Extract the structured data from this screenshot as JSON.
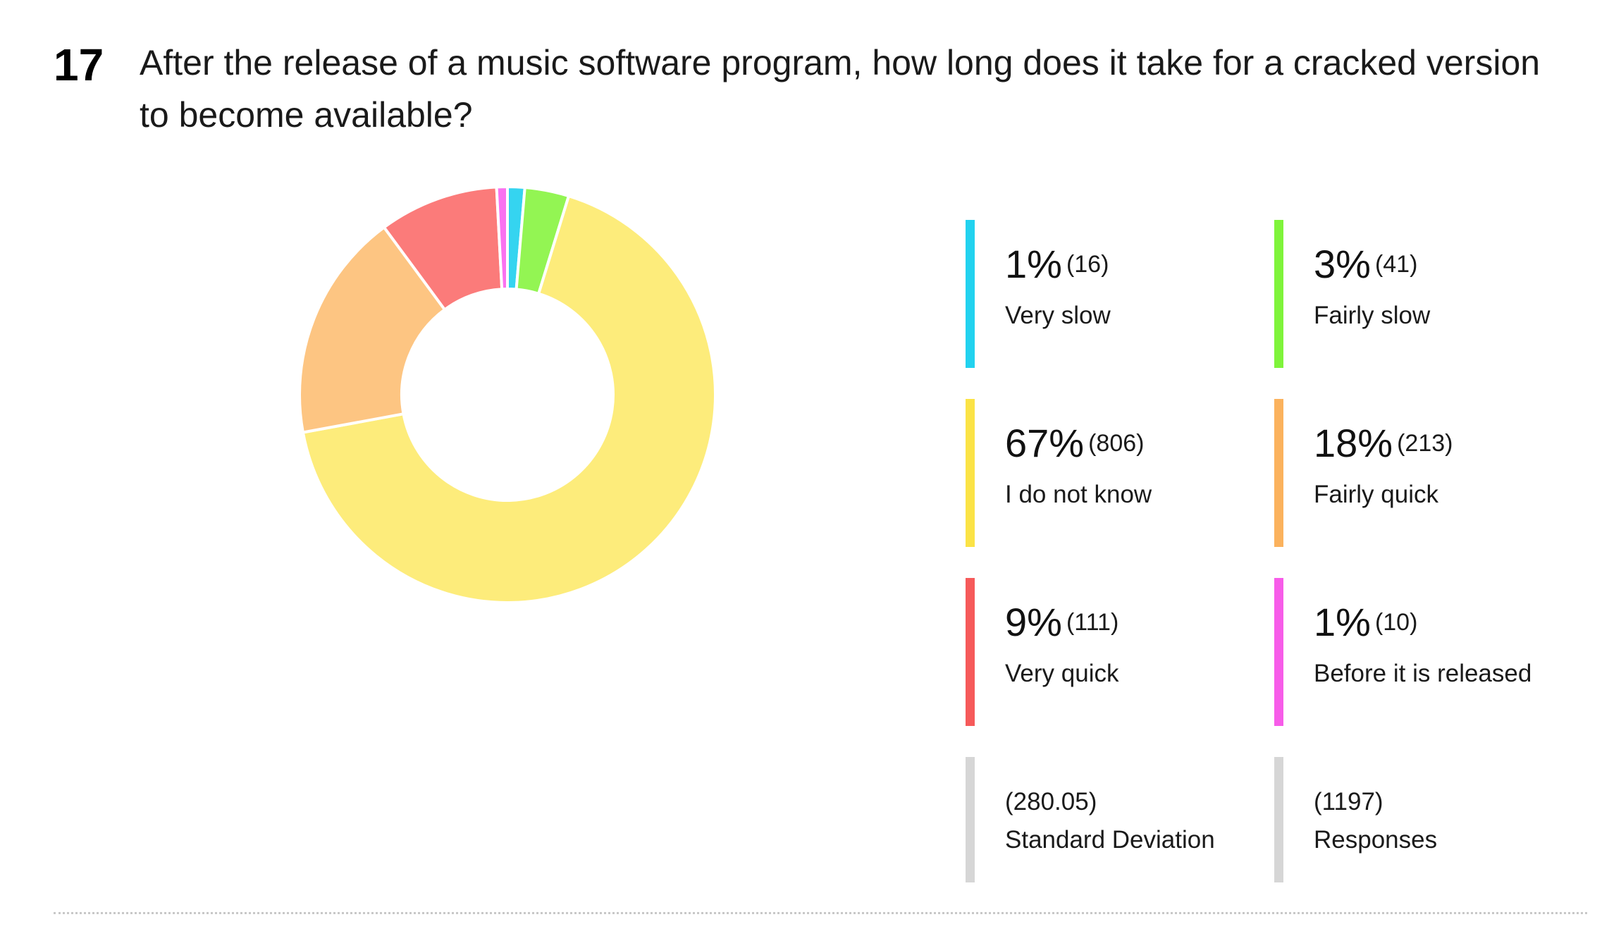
{
  "question": {
    "number": "17",
    "title": "After the release of a music software program, how long does it take for a cracked version to become available?"
  },
  "chart_data": {
    "type": "pie",
    "variant": "donut",
    "categories": [
      "Very slow",
      "Fairly slow",
      "I do not know",
      "Fairly quick",
      "Very quick",
      "Before it is released"
    ],
    "values": [
      16,
      41,
      806,
      213,
      111,
      10
    ],
    "percent_labels": [
      "1%",
      "3%",
      "67%",
      "18%",
      "9%",
      "1%"
    ],
    "count_labels": [
      "(16)",
      "(41)",
      "(806)",
      "(213)",
      "(111)",
      "(10)"
    ],
    "colors": [
      "#35d4f0",
      "#93f553",
      "#fdec7b",
      "#fdc582",
      "#fb7b7a",
      "#fa72f0"
    ],
    "legend_bar_colors": [
      "#22d2ef",
      "#7ff43b",
      "#fbe346",
      "#fbb25d",
      "#f65a5a",
      "#f75ce9"
    ],
    "legend_position": "right",
    "start_category": "Very slow",
    "direction": "clockwise from top"
  },
  "legend": {
    "items": [
      {
        "pct": "1%",
        "count": "(16)",
        "label": "Very slow"
      },
      {
        "pct": "3%",
        "count": "(41)",
        "label": "Fairly slow"
      },
      {
        "pct": "67%",
        "count": "(806)",
        "label": "I do not know"
      },
      {
        "pct": "18%",
        "count": "(213)",
        "label": "Fairly quick"
      },
      {
        "pct": "9%",
        "count": "(111)",
        "label": "Very quick"
      },
      {
        "pct": "1%",
        "count": "(10)",
        "label": "Before it is released"
      }
    ],
    "stats": [
      {
        "value": "(280.05)",
        "label": "Standard Deviation"
      },
      {
        "value": "(1197)",
        "label": "Responses"
      }
    ]
  }
}
